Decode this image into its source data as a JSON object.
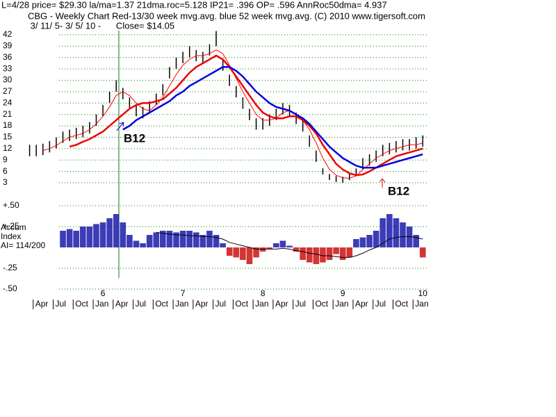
{
  "header": {
    "lines": [
      "L=4/28  price= $29.30  la/ma=1.37 21dma.roc=5.128 IP21= .396 OP= .596 AnnRoc50dma= 4.937",
      "CBG  - Weekly Chart  Red-13/30 week mvg.avg.  blue 52 week mvg.avg.  (C) 2010 www.tigersoft.com",
      " 3/ 11/ 5- 3/ 5/ 10 -      Close= $14.05"
    ]
  },
  "chart_data": [
    {
      "type": "hilo",
      "annotations": [
        "B12",
        "B12"
      ],
      "x": [
        1,
        2,
        3,
        4,
        5,
        6,
        7,
        8,
        9,
        10,
        11,
        12,
        13,
        14,
        15,
        16,
        17,
        18,
        19,
        20,
        21,
        22,
        23,
        24,
        25,
        26,
        27,
        28,
        29,
        30,
        31,
        32,
        33,
        34,
        35,
        36,
        37,
        38,
        39,
        40,
        41,
        42,
        43,
        44,
        45,
        46,
        47,
        48,
        49,
        50,
        51,
        52,
        53,
        54,
        55,
        56,
        57,
        58,
        59,
        60
      ],
      "high": [
        13,
        13,
        13.3,
        14,
        15,
        16.5,
        17,
        17.5,
        18,
        19,
        21,
        23.5,
        27,
        30,
        28,
        25.5,
        23.5,
        23,
        24.5,
        26.5,
        29,
        33.5,
        36,
        37.5,
        39,
        38,
        37.5,
        39.5,
        43,
        35.5,
        31.5,
        28.5,
        25.5,
        22.5,
        20,
        20,
        21,
        22.5,
        24,
        23.5,
        21.5,
        19.5,
        15.5,
        11.5,
        6.8,
        5.3,
        4.8,
        4.6,
        5.3,
        6.8,
        9.5,
        10.5,
        11.5,
        13,
        13.5,
        14,
        14.5,
        14.5,
        15,
        15.5
      ],
      "low": [
        10,
        10,
        10.3,
        11,
        12,
        13.5,
        14,
        14.5,
        15,
        16,
        18,
        20.5,
        24,
        27,
        25,
        22.5,
        20.5,
        20,
        21.5,
        23.5,
        26,
        30.5,
        33,
        34.5,
        36,
        35,
        34.5,
        36.5,
        39,
        32.5,
        28.5,
        25.5,
        22.5,
        19.5,
        17,
        17,
        18,
        19.5,
        21,
        20.5,
        18.5,
        16.5,
        12.5,
        8.5,
        5.2,
        3.7,
        3.2,
        3,
        3.7,
        5.2,
        6.5,
        7.5,
        8.5,
        10,
        10.5,
        11,
        11.5,
        11.5,
        12,
        12.5
      ],
      "bar_color": "#000000",
      "series": [
        {
          "color": "#ff0000",
          "width": 1,
          "values": [
            null,
            null,
            11.5,
            12,
            12.8,
            14,
            15,
            15.5,
            16,
            17,
            18.5,
            20.5,
            23,
            26,
            27,
            26,
            24,
            22.5,
            22,
            23.5,
            25.5,
            28.5,
            31.5,
            34,
            35.5,
            36.5,
            36.5,
            37,
            38,
            37,
            34,
            30.5,
            27,
            24,
            21,
            19.5,
            19.5,
            20,
            21.5,
            22,
            21,
            19.5,
            17,
            13.5,
            9.5,
            6.5,
            5,
            4.3,
            4.2,
            4.8,
            6.5,
            8,
            9.5,
            10.5,
            11.5,
            12,
            12.5,
            13,
            13,
            13.5
          ]
        },
        {
          "color": "#ee0000",
          "width": 2.5,
          "values": [
            null,
            null,
            null,
            null,
            null,
            null,
            12.5,
            13,
            13.8,
            14.5,
            15.5,
            16.5,
            18,
            19.5,
            21,
            22.5,
            23.5,
            24,
            24,
            24.5,
            25,
            26.5,
            28,
            30,
            32,
            33.5,
            34.5,
            35.5,
            36.5,
            35.5,
            33.5,
            31,
            28.5,
            26,
            23.5,
            21.5,
            20.5,
            20,
            20,
            20.5,
            20.5,
            19.5,
            18,
            16,
            13,
            10.5,
            8,
            6.5,
            5.5,
            5,
            5.2,
            6,
            7,
            8,
            9,
            10,
            10.5,
            11,
            11.5,
            12
          ]
        },
        {
          "color": "#0000dd",
          "width": 2.5,
          "values": [
            null,
            null,
            null,
            null,
            null,
            null,
            null,
            null,
            null,
            null,
            null,
            null,
            null,
            null,
            17,
            18,
            19.5,
            20.5,
            21.5,
            22.5,
            23.5,
            24.5,
            26,
            27,
            28.5,
            29.5,
            30.5,
            31.5,
            32.5,
            33.5,
            33.5,
            32.5,
            31,
            29,
            27,
            25.5,
            24,
            23,
            22.5,
            22,
            21,
            20,
            18.5,
            16.5,
            14.5,
            12.5,
            11,
            9.5,
            8.5,
            7.5,
            7,
            7,
            7,
            7.5,
            8,
            8.5,
            9,
            9.5,
            10,
            10.5
          ]
        }
      ],
      "xlim": [
        0.73,
        60.7
      ],
      "ylim": [
        3,
        42
      ],
      "yticks": [
        3,
        6,
        9,
        12,
        15,
        18,
        21,
        24,
        27,
        30,
        33,
        36,
        39,
        42
      ],
      "grid": true,
      "grid_color": "#008000"
    },
    {
      "type": "bar",
      "ylabel": [
        "Accum",
        "Index"
      ],
      "annotation": "AI= 114/200",
      "x": [
        1,
        2,
        3,
        4,
        5,
        6,
        7,
        8,
        9,
        10,
        11,
        12,
        13,
        14,
        15,
        16,
        17,
        18,
        19,
        20,
        21,
        22,
        23,
        24,
        25,
        26,
        27,
        28,
        29,
        30,
        31,
        32,
        33,
        34,
        35,
        36,
        37,
        38,
        39,
        40,
        41,
        42,
        43,
        44,
        45,
        46,
        47,
        48,
        49,
        50,
        51,
        52,
        53,
        54,
        55,
        56,
        57,
        58,
        59,
        60
      ],
      "values": [
        null,
        null,
        null,
        null,
        null,
        0.2,
        0.22,
        0.2,
        0.25,
        0.25,
        0.28,
        0.3,
        0.35,
        0.4,
        0.3,
        0.15,
        0.08,
        0.05,
        0.15,
        0.18,
        0.2,
        0.2,
        0.18,
        0.2,
        0.2,
        0.18,
        0.15,
        0.2,
        0.15,
        0.05,
        -0.1,
        -0.12,
        -0.15,
        -0.2,
        -0.12,
        -0.05,
        -0.02,
        0.05,
        0.08,
        0.02,
        -0.05,
        -0.15,
        -0.18,
        -0.2,
        -0.18,
        -0.15,
        -0.08,
        -0.15,
        -0.12,
        0.1,
        0.12,
        0.15,
        0.2,
        0.35,
        0.4,
        0.35,
        0.3,
        0.25,
        0.15,
        -0.12
      ],
      "color_positive": "#1a1aaa",
      "color_negative": "#cc1111",
      "series": [
        {
          "color": "#000000",
          "values": [
            null,
            null,
            null,
            null,
            null,
            null,
            null,
            null,
            null,
            null,
            null,
            null,
            null,
            null,
            null,
            null,
            null,
            null,
            null,
            0.18,
            0.17,
            0.16,
            0.15,
            0.15,
            0.14,
            0.14,
            0.13,
            0.13,
            0.12,
            0.1,
            0.06,
            0.04,
            0.02,
            0,
            -0.02,
            -0.02,
            -0.02,
            -0.02,
            -0.01,
            -0.02,
            -0.04,
            -0.05,
            -0.07,
            -0.08,
            -0.1,
            -0.1,
            -0.11,
            -0.12,
            -0.12,
            -0.1,
            -0.07,
            -0.03,
            0,
            0.05,
            0.1,
            0.12,
            0.13,
            0.13,
            0.12,
            0.1
          ]
        }
      ],
      "xlim": [
        0.73,
        60.7
      ],
      "ylim": [
        -0.5,
        0.5
      ],
      "yticks": [
        {
          "value": 0.5,
          "label": "+.50"
        },
        {
          "value": 0.25,
          "label": "+.25"
        },
        {
          "value": -0.25,
          "label": "-.25"
        },
        {
          "value": -0.5,
          "label": "-.50"
        }
      ],
      "grid": true,
      "grid_color": "#008000",
      "year_ticks": [
        {
          "value": 12,
          "label": "6"
        },
        {
          "value": 24,
          "label": "7"
        },
        {
          "value": 36,
          "label": "8"
        },
        {
          "value": 48,
          "label": "9"
        },
        {
          "value": 60,
          "label": "10"
        }
      ],
      "xticks": [
        {
          "value": 3,
          "label": "Apr"
        },
        {
          "value": 6,
          "label": "Jul"
        },
        {
          "value": 9,
          "label": "Oct"
        },
        {
          "value": 12,
          "label": "Jan"
        },
        {
          "value": 15,
          "label": "Apr"
        },
        {
          "value": 18,
          "label": "Jul"
        },
        {
          "value": 21,
          "label": "Oct"
        },
        {
          "value": 24,
          "label": "Jan"
        },
        {
          "value": 27,
          "label": "Apr"
        },
        {
          "value": 30,
          "label": "Jul"
        },
        {
          "value": 33,
          "label": "Oct"
        },
        {
          "value": 36,
          "label": "Jan"
        },
        {
          "value": 39,
          "label": "Apr"
        },
        {
          "value": 42,
          "label": "Jul"
        },
        {
          "value": 45,
          "label": "Oct"
        },
        {
          "value": 48,
          "label": "Jan"
        },
        {
          "value": 51,
          "label": "Apr"
        },
        {
          "value": 54,
          "label": "Jul"
        },
        {
          "value": 57,
          "label": "Oct"
        },
        {
          "value": 60,
          "label": "Jan"
        }
      ]
    }
  ]
}
